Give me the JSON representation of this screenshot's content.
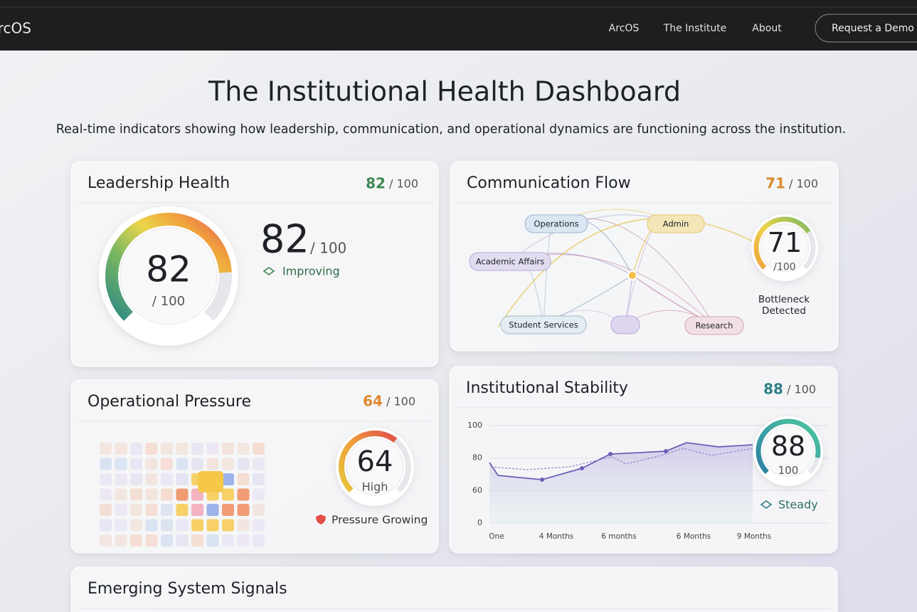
{
  "nav": {
    "logo": "ArcOS",
    "links": [
      "ArcOS",
      "The Institute",
      "About"
    ],
    "cta": "Request a Demo"
  },
  "header": {
    "title": "The Institutional Health Dashboard",
    "subtitle": "Real-time indicators showing how leadership, communication, and operational dynamics are functioning across the institution."
  },
  "cards": [
    {
      "title": "Leadership Health",
      "score": 82,
      "max": 100,
      "max_label": "/ 100",
      "gauge_sub": "/ 100",
      "status": "Improving"
    },
    {
      "title": "Communication Flow",
      "score": 71,
      "max": 100,
      "max_label": "/ 100",
      "gauge_sub": "/100",
      "status": "Bottleneck Detected",
      "nodes": [
        "Operations",
        "Admin",
        "Academic Affairs",
        "Student Services",
        null,
        "Research"
      ]
    },
    {
      "title": "Operational Pressure",
      "score": 64,
      "max": 100,
      "max_label": "/ 100",
      "gauge_sub": "High",
      "status": "Pressure Growing"
    },
    {
      "title": "Institutional Stability",
      "score": 88,
      "max": 100,
      "max_label": "/ 100",
      "gauge_sub": "100",
      "status": "Steady",
      "y_labels": [
        "100",
        "80",
        "60",
        "0"
      ],
      "x_labels": [
        "One",
        "4 Months",
        "6 months",
        "6 Months",
        "9 Months"
      ]
    },
    {
      "title": "Emerging System Signals"
    }
  ]
}
